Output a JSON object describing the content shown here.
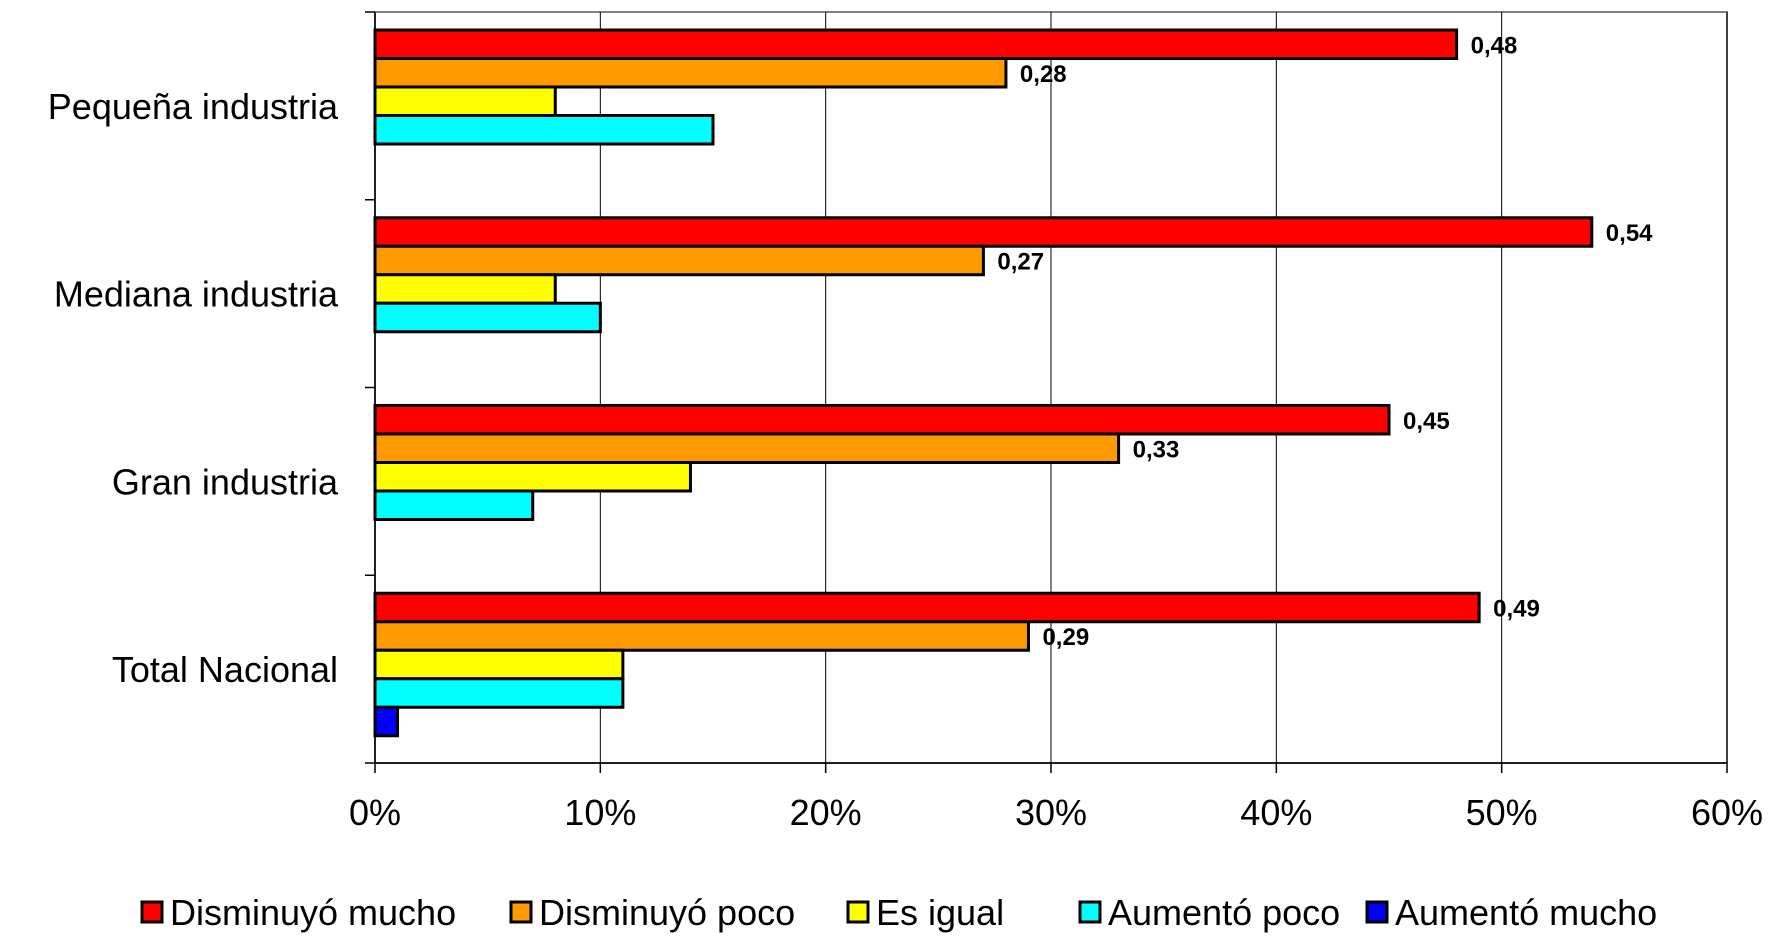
{
  "chart_data": {
    "type": "bar",
    "orientation": "horizontal",
    "categories": [
      "Total Nacional",
      "Gran industria",
      "Mediana industria",
      "Pequeña industria"
    ],
    "series": [
      {
        "name": "Disminuyó mucho",
        "color": "#ff0000",
        "values": [
          0.49,
          0.45,
          0.54,
          0.48
        ],
        "data_labels": [
          "0,49",
          "0,45",
          "0,54",
          "0,48"
        ]
      },
      {
        "name": "Disminuyó poco",
        "color": "#ff9900",
        "values": [
          0.29,
          0.33,
          0.27,
          0.28
        ],
        "data_labels": [
          "0,29",
          "0,33",
          "0,27",
          "0,28"
        ]
      },
      {
        "name": "Es igual",
        "color": "#ffff00",
        "values": [
          0.11,
          0.14,
          0.08,
          0.08
        ]
      },
      {
        "name": "Aumentó poco",
        "color": "#00ffff",
        "values": [
          0.11,
          0.07,
          0.1,
          0.15
        ]
      },
      {
        "name": "Aumentó mucho",
        "color": "#0000ff",
        "values": [
          0.01,
          0,
          0,
          0
        ]
      }
    ],
    "xlim": [
      0,
      0.6
    ],
    "x_ticks": [
      0,
      0.1,
      0.2,
      0.3,
      0.4,
      0.5,
      0.6
    ],
    "x_tick_labels": [
      "0%",
      "10%",
      "20%",
      "30%",
      "40%",
      "50%",
      "60%"
    ],
    "grid": "vertical",
    "legend_position": "bottom",
    "title": "",
    "xlabel": "",
    "ylabel": ""
  }
}
